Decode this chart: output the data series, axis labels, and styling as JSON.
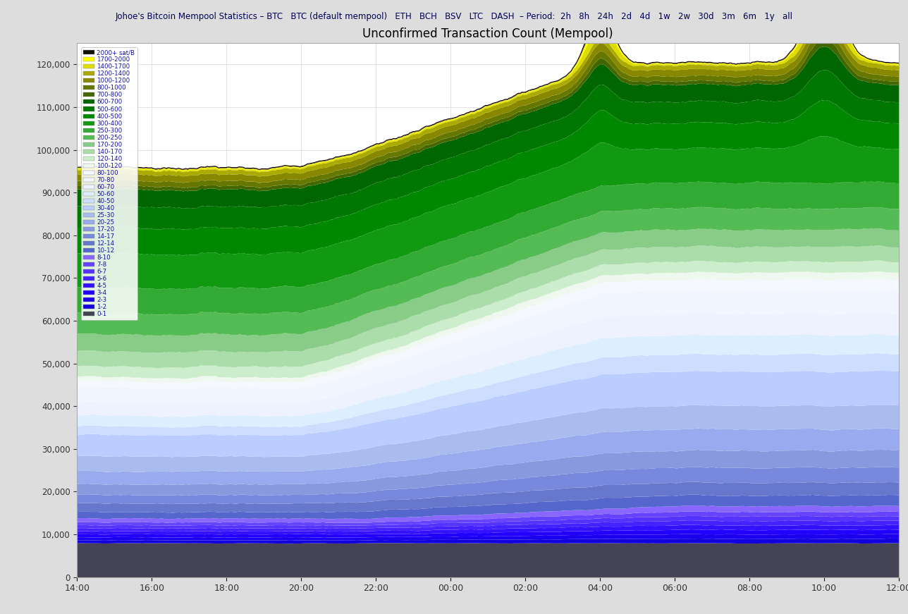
{
  "title": "Unconfirmed Transaction Count (Mempool)",
  "ylim": [
    0,
    125000
  ],
  "yticks": [
    0,
    10000,
    20000,
    30000,
    40000,
    50000,
    60000,
    70000,
    80000,
    90000,
    100000,
    110000,
    120000
  ],
  "time_labels": [
    "14:00",
    "16:00",
    "18:00",
    "20:00",
    "22:00",
    "00:00",
    "02:00",
    "04:00",
    "06:00",
    "08:00",
    "10:00",
    "12:00"
  ],
  "layer_order": [
    "0-1",
    "1-2",
    "2-3",
    "3-4",
    "4-5",
    "5-6",
    "6-7",
    "7-8",
    "8-10",
    "10-12",
    "12-14",
    "14-17",
    "17-20",
    "20-25",
    "25-30",
    "30-40",
    "40-50",
    "50-60",
    "60-70",
    "70-80",
    "80-100",
    "100-120",
    "120-140",
    "140-170",
    "170-200",
    "200-250",
    "250-300",
    "300-400",
    "400-500",
    "500-600",
    "600-700",
    "700-800",
    "800-1000",
    "1000-1200",
    "1200-1400",
    "1400-1700",
    "1700-2000",
    "2000+ sat/B"
  ],
  "colors": {
    "0-1": "#555566",
    "1-2": "#2222bb",
    "2-3": "#2233cc",
    "3-4": "#2244cc",
    "4-5": "#3355dd",
    "5-6": "#4466ee",
    "6-7": "#5577ff",
    "7-8": "#7799ff",
    "8-10": "#99aaee",
    "10-12": "#4466bb",
    "12-14": "#5577cc",
    "14-17": "#6688dd",
    "17-20": "#7799ee",
    "20-25": "#88aaff",
    "25-30": "#99bbff",
    "30-40": "#aaccff",
    "40-50": "#bbddff",
    "50-60": "#ccddff",
    "60-70": "#ddeeff",
    "70-80": "#eef0ff",
    "80-100": "#eef8ee",
    "100-120": "#cceecc",
    "120-140": "#aaddaa",
    "140-170": "#88cc88",
    "170-200": "#66bb66",
    "200-250": "#44aa44",
    "250-300": "#229922",
    "300-400": "#119900",
    "400-500": "#008800",
    "500-600": "#007700",
    "600-700": "#006600",
    "700-800": "#558822",
    "800-1000": "#889922",
    "1000-1200": "#aaaa33",
    "1200-1400": "#cccc33",
    "1400-1700": "#dddd33",
    "1700-2000": "#eeee44",
    "2000+ sat/B": "#000000"
  },
  "legend_colors": {
    "0-1": "#555566",
    "1-2": "#2222bb",
    "2-3": "#2233cc",
    "3-4": "#2244cc",
    "4-5": "#3355dd",
    "5-6": "#4466ee",
    "6-7": "#5577ff",
    "7-8": "#7799ff",
    "8-10": "#99aaee",
    "10-12": "#4466bb",
    "12-14": "#5577cc",
    "14-17": "#6688dd",
    "17-20": "#7799ee",
    "20-25": "#88aaff",
    "25-30": "#99bbff",
    "30-40": "#aaccff",
    "40-50": "#bbddff",
    "50-60": "#ccddff",
    "60-70": "#ddeeff",
    "70-80": "#eef0ff",
    "80-100": "#eef8ee",
    "100-120": "#cceecc",
    "120-140": "#aaddaa",
    "140-170": "#88cc88",
    "170-200": "#66bb66",
    "200-250": "#44aa44",
    "250-300": "#229922",
    "300-400": "#119900",
    "400-500": "#008800",
    "500-600": "#007700",
    "600-700": "#006600",
    "700-800": "#558822",
    "800-1000": "#889922",
    "1000-1200": "#aaaa33",
    "1200-1400": "#cccc33",
    "1400-1700": "#dddd33",
    "1700-2000": "#eeee44",
    "2000+ sat/B": "#000000"
  }
}
